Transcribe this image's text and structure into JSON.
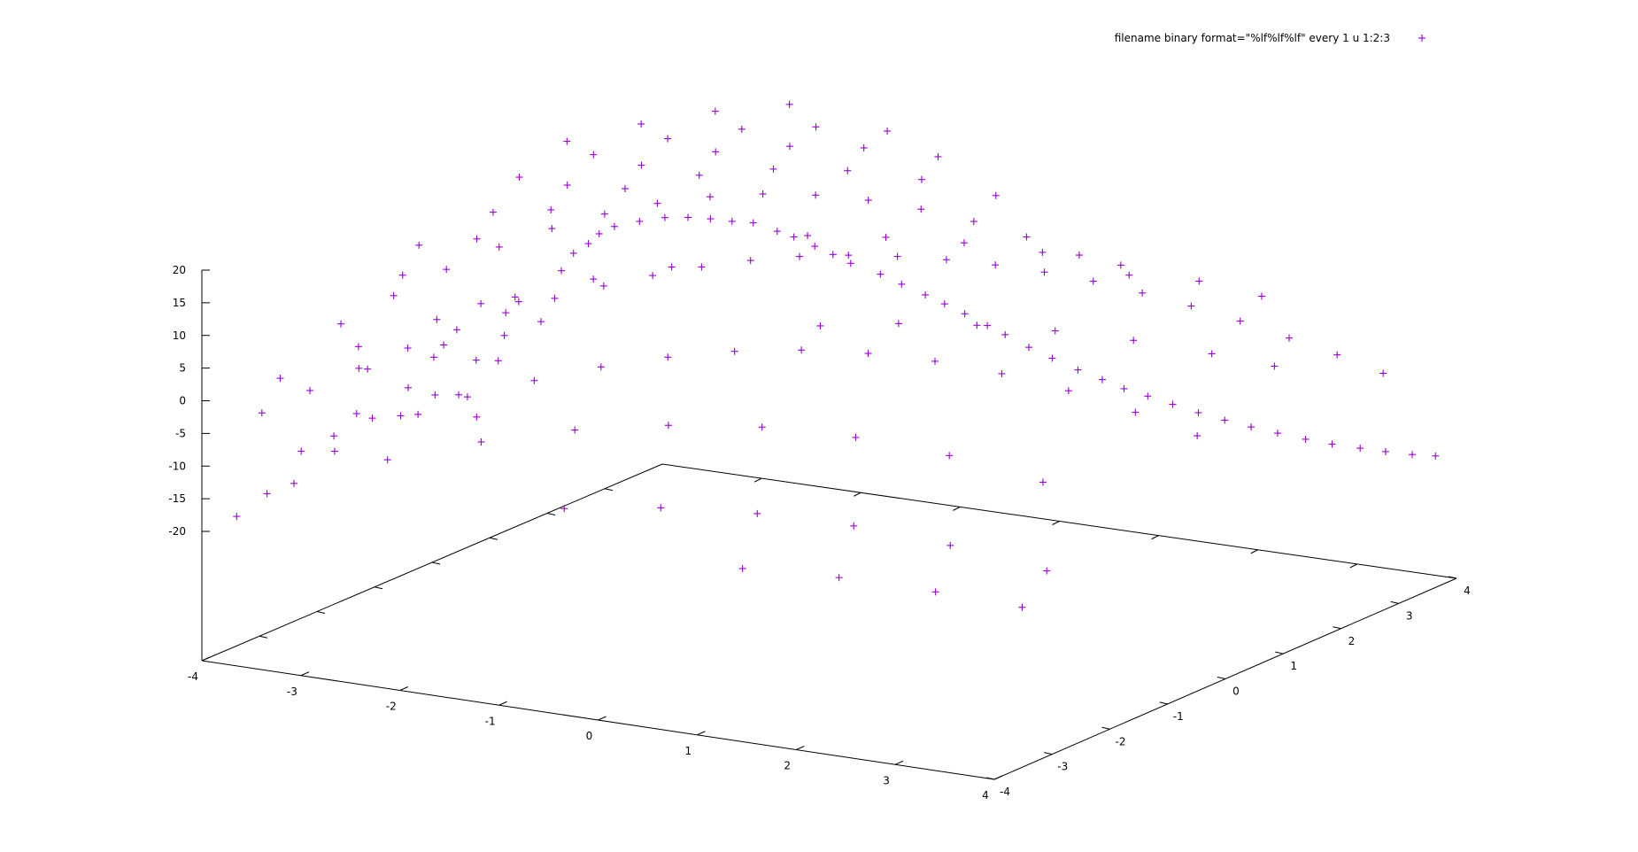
{
  "chart_data": {
    "type": "scatter",
    "title": "",
    "xlabel": "",
    "ylabel": "",
    "zlabel": "",
    "xlim": [
      -4,
      4
    ],
    "ylim": [
      -4,
      4
    ],
    "zlim": [
      -20,
      20
    ],
    "x_ticks": [
      "-4",
      "-3",
      "-2",
      "-1",
      "0",
      "1",
      "2",
      "3",
      "4"
    ],
    "y_ticks": [
      "-4",
      "-3",
      "-2",
      "-1",
      "0",
      "1",
      "2",
      "3",
      "4"
    ],
    "z_ticks": [
      "20",
      "15",
      "10",
      "5",
      "0",
      "-5",
      "-10",
      "-15",
      "-20"
    ],
    "grid": false,
    "legend_position": "top-right",
    "marker": "+",
    "color": "#9400d3",
    "series": [
      {
        "name": "filename binary format=\"%lf%lf%lf\" every 1 u 1:2:3",
        "points": [
          [
            -3.98,
            -3.43,
            -19.8
          ],
          [
            -3.83,
            -3.16,
            -17.0
          ],
          [
            -3.7,
            -2.79,
            -11.6
          ],
          [
            -3.45,
            -2.64,
            -11.6
          ],
          [
            -3.29,
            -2.26,
            -7.6
          ],
          [
            -3.35,
            -2.43,
            -6.4
          ],
          [
            -3.42,
            -2.12,
            -0.9
          ],
          [
            -3.12,
            -1.93,
            -3.8
          ],
          [
            -3.05,
            -1.88,
            -7.9
          ],
          [
            -2.93,
            -1.79,
            -5.0
          ],
          [
            -2.96,
            -1.76,
            0.6
          ],
          [
            -2.93,
            -1.64,
            2.1
          ],
          [
            -2.86,
            -1.5,
            -5.9
          ],
          [
            -2.76,
            -1.36,
            -9.6
          ],
          [
            -2.73,
            -1.42,
            -0.6
          ],
          [
            -2.7,
            -1.39,
            8.0
          ],
          [
            -2.6,
            -1.26,
            -1.0
          ],
          [
            -2.55,
            -1.24,
            2.9
          ],
          [
            -2.44,
            -1.18,
            8.1
          ],
          [
            -2.29,
            -1.05,
            4.9
          ],
          [
            -2.16,
            -0.92,
            12.5
          ],
          [
            -2.09,
            -0.83,
            15.0
          ],
          [
            -2.01,
            -0.71,
            16.2
          ],
          [
            -1.93,
            -0.66,
            17.7
          ],
          [
            -1.84,
            -0.55,
            18.6
          ],
          [
            -1.65,
            -0.44,
            19.4
          ],
          [
            -1.47,
            -0.31,
            19.9
          ],
          [
            -1.3,
            -0.2,
            19.9
          ],
          [
            -1.12,
            -0.12,
            19.8
          ],
          [
            -0.96,
            -0.02,
            19.4
          ],
          [
            -0.81,
            0.09,
            19.1
          ],
          [
            -0.62,
            0.18,
            17.9
          ],
          [
            -0.51,
            0.28,
            16.9
          ],
          [
            -0.34,
            0.35,
            15.6
          ],
          [
            -0.22,
            0.46,
            14.2
          ],
          [
            -0.07,
            0.51,
            13.0
          ],
          [
            0.16,
            0.63,
            11.4
          ],
          [
            0.31,
            0.74,
            9.8
          ],
          [
            0.48,
            0.86,
            8.1
          ],
          [
            0.61,
            0.97,
            6.6
          ],
          [
            0.75,
            1.08,
            5.0
          ],
          [
            0.92,
            1.18,
            3.2
          ],
          [
            1.03,
            1.3,
            1.6
          ],
          [
            1.2,
            1.42,
            -0.4
          ],
          [
            1.36,
            1.55,
            -2.2
          ],
          [
            1.55,
            1.67,
            -4.0
          ],
          [
            1.72,
            1.8,
            -5.6
          ],
          [
            1.87,
            1.92,
            -7.1
          ],
          [
            2.04,
            2.04,
            -8.3
          ],
          [
            2.21,
            2.18,
            -9.7
          ],
          [
            2.4,
            2.3,
            -11.0
          ],
          [
            2.59,
            2.43,
            -12.2
          ],
          [
            2.77,
            2.58,
            -13.4
          ],
          [
            2.95,
            2.73,
            -14.5
          ],
          [
            3.14,
            2.89,
            -15.6
          ],
          [
            3.32,
            3.04,
            -16.5
          ],
          [
            3.51,
            3.2,
            -17.3
          ],
          [
            3.68,
            3.35,
            -18.0
          ],
          [
            3.85,
            3.52,
            -18.7
          ],
          [
            3.98,
            3.7,
            -19.3
          ],
          [
            -3.51,
            -3.8,
            -1.5
          ],
          [
            -3.2,
            -3.5,
            1.5
          ],
          [
            -2.88,
            -3.2,
            4.5
          ],
          [
            -2.56,
            -2.9,
            7.2
          ],
          [
            -2.24,
            -2.6,
            9.6
          ],
          [
            -1.92,
            -2.3,
            11.8
          ],
          [
            -1.6,
            -2.0,
            13.6
          ],
          [
            -1.28,
            -1.7,
            15.1
          ],
          [
            -0.96,
            -1.4,
            16.3
          ],
          [
            -0.64,
            -1.1,
            17.2
          ],
          [
            -0.32,
            -0.8,
            17.8
          ],
          [
            0.0,
            -0.5,
            18.0
          ],
          [
            0.32,
            -0.2,
            17.8
          ],
          [
            0.64,
            0.1,
            17.2
          ],
          [
            0.96,
            0.4,
            16.3
          ],
          [
            1.28,
            0.7,
            15.1
          ],
          [
            1.6,
            1.0,
            13.6
          ],
          [
            1.92,
            1.3,
            11.8
          ],
          [
            2.24,
            1.6,
            9.6
          ],
          [
            2.56,
            1.9,
            7.2
          ],
          [
            2.88,
            2.2,
            4.5
          ],
          [
            3.2,
            2.5,
            1.5
          ],
          [
            3.51,
            2.8,
            -1.5
          ],
          [
            3.8,
            3.1,
            -4.8
          ],
          [
            -3.7,
            -2.1,
            5.3
          ],
          [
            -3.4,
            -1.7,
            8.8
          ],
          [
            -3.1,
            -1.3,
            12.0
          ],
          [
            -2.8,
            -0.9,
            14.6
          ],
          [
            -2.5,
            -0.5,
            16.6
          ],
          [
            -2.2,
            -0.1,
            18.0
          ],
          [
            -1.9,
            0.3,
            18.8
          ],
          [
            -1.6,
            0.7,
            19.0
          ],
          [
            -1.3,
            1.1,
            18.6
          ],
          [
            -1.0,
            1.5,
            17.6
          ],
          [
            -0.7,
            1.9,
            16.0
          ],
          [
            -0.4,
            2.3,
            13.8
          ],
          [
            -0.1,
            2.7,
            11.1
          ],
          [
            0.2,
            3.1,
            7.9
          ],
          [
            0.5,
            3.5,
            4.3
          ],
          [
            0.8,
            3.85,
            0.6
          ],
          [
            -2.9,
            -3.6,
            -4.4
          ],
          [
            -2.4,
            -3.3,
            -1.3
          ],
          [
            -1.9,
            -3.0,
            1.6
          ],
          [
            -1.4,
            -2.7,
            4.1
          ],
          [
            -0.9,
            -2.4,
            6.2
          ],
          [
            -0.4,
            -2.1,
            7.7
          ],
          [
            0.1,
            -1.8,
            8.6
          ],
          [
            0.6,
            -1.5,
            8.8
          ],
          [
            1.1,
            -1.2,
            8.3
          ],
          [
            1.6,
            -0.9,
            7.1
          ],
          [
            2.1,
            -0.6,
            5.2
          ],
          [
            2.6,
            -0.3,
            2.6
          ],
          [
            3.1,
            0.0,
            -0.7
          ],
          [
            3.55,
            0.3,
            -4.4
          ],
          [
            -3.6,
            -1.2,
            9.6
          ],
          [
            -3.2,
            -0.6,
            13.8
          ],
          [
            -2.8,
            0.0,
            16.9
          ],
          [
            -2.4,
            0.6,
            18.8
          ],
          [
            -2.0,
            1.2,
            19.5
          ],
          [
            -1.6,
            1.8,
            19.1
          ],
          [
            -1.2,
            2.4,
            17.5
          ],
          [
            -0.8,
            3.0,
            14.8
          ],
          [
            -0.4,
            3.6,
            11.0
          ],
          [
            -3.1,
            -3.95,
            -10.8
          ],
          [
            -2.3,
            -3.7,
            -6.3
          ],
          [
            -1.5,
            -3.45,
            -2.7
          ],
          [
            -0.7,
            -3.2,
            0.0
          ],
          [
            0.1,
            -2.95,
            1.6
          ],
          [
            0.9,
            -2.7,
            2.2
          ],
          [
            1.7,
            -2.45,
            1.5
          ],
          [
            2.5,
            -2.2,
            -0.4
          ],
          [
            3.3,
            -1.95,
            -3.6
          ],
          [
            -3.9,
            -0.4,
            10.5
          ],
          [
            -3.5,
            0.2,
            14.2
          ],
          [
            -3.1,
            0.8,
            17.0
          ],
          [
            -2.7,
            1.4,
            18.7
          ],
          [
            -2.3,
            2.0,
            19.4
          ],
          [
            -1.9,
            2.6,
            18.9
          ],
          [
            -1.5,
            3.2,
            17.3
          ],
          [
            -1.1,
            3.8,
            14.6
          ],
          [
            -0.4,
            -3.9,
            -8.7
          ],
          [
            0.4,
            -3.6,
            -7.9
          ],
          [
            1.2,
            -3.3,
            -8.1
          ],
          [
            2.0,
            -3.0,
            -9.3
          ],
          [
            2.8,
            -2.7,
            -11.6
          ],
          [
            3.6,
            -2.4,
            -14.8
          ],
          [
            -3.7,
            1.0,
            16.1
          ],
          [
            -3.3,
            1.6,
            18.2
          ],
          [
            -2.9,
            2.2,
            19.3
          ],
          [
            -2.5,
            2.8,
            19.4
          ],
          [
            -2.1,
            3.4,
            18.4
          ],
          [
            -1.7,
            3.95,
            16.6
          ],
          [
            1.4,
            -3.9,
            -13.8
          ],
          [
            2.2,
            -3.6,
            -14.5
          ],
          [
            3.0,
            -3.3,
            -16.0
          ],
          [
            3.7,
            -3.0,
            -17.9
          ],
          [
            -3.8,
            2.0,
            17.6
          ],
          [
            -3.4,
            2.6,
            18.9
          ],
          [
            -3.0,
            3.2,
            19.5
          ],
          [
            -2.6,
            3.8,
            19.2
          ],
          [
            0.5,
            -1.0,
            10.4
          ],
          [
            1.0,
            -0.5,
            10.0
          ],
          [
            1.5,
            0.0,
            9.0
          ],
          [
            2.0,
            0.5,
            7.4
          ],
          [
            2.5,
            1.0,
            5.2
          ],
          [
            3.0,
            1.5,
            2.4
          ],
          [
            3.4,
            1.9,
            -0.1
          ],
          [
            -0.5,
            0.5,
            16.3
          ],
          [
            0.0,
            1.0,
            15.3
          ],
          [
            0.5,
            1.5,
            13.7
          ],
          [
            1.0,
            2.0,
            11.5
          ],
          [
            1.5,
            2.5,
            8.8
          ],
          [
            2.0,
            3.0,
            5.6
          ],
          [
            2.4,
            3.4,
            2.7
          ],
          [
            -1.0,
            -1.0,
            16.0
          ],
          [
            -1.5,
            -1.5,
            14.9
          ],
          [
            -2.0,
            -2.0,
            12.9
          ],
          [
            -2.5,
            -2.5,
            10.2
          ],
          [
            -3.0,
            -3.0,
            6.8
          ],
          [
            -3.5,
            -3.5,
            2.7
          ]
        ]
      }
    ]
  }
}
